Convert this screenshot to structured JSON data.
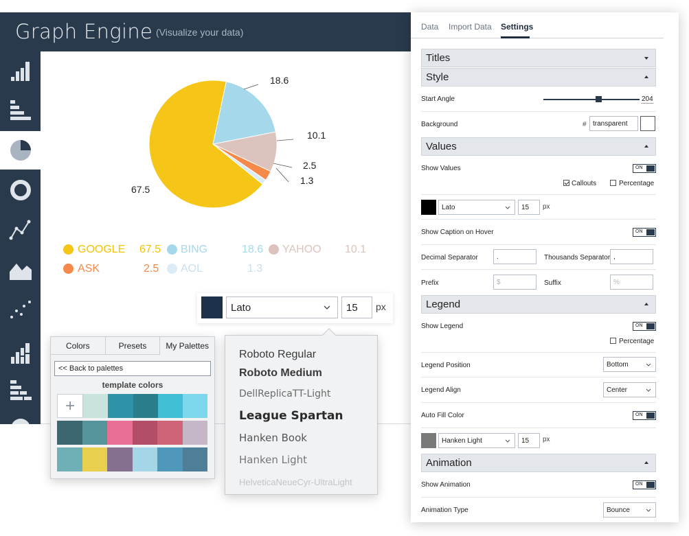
{
  "app": {
    "title": "Graph Engine",
    "subtitle": "(Visualize your data)",
    "sidebar_icons": [
      "bar-chart-icon",
      "horizontal-bar-chart-icon",
      "pie-chart-icon",
      "donut-chart-icon",
      "line-chart-icon",
      "area-chart-icon",
      "scatter-chart-icon",
      "stacked-bar-chart-icon",
      "stacked-horizontal-bar-chart-icon",
      "semi-pie-chart-icon"
    ],
    "active_sidebar": "pie-chart-icon"
  },
  "chart_data": {
    "type": "pie",
    "start_angle": 204,
    "slices": [
      {
        "name": "GOOGLE",
        "value": 67.5,
        "label": "67.5",
        "color": "#f5c518"
      },
      {
        "name": "BING",
        "value": 18.6,
        "label": "18.6",
        "color": "#a4d8ea"
      },
      {
        "name": "YAHOO",
        "value": 10.1,
        "label": "10.1",
        "color": "#dcc3bd"
      },
      {
        "name": "ASK",
        "value": 2.5,
        "label": "2.5",
        "color": "#f4894a"
      },
      {
        "name": "AOL",
        "value": 1.3,
        "label": "1.3",
        "color": "#dcecf6"
      }
    ],
    "legend_placement": "bottom"
  },
  "font_picker": {
    "swatch_color": "#1c3049",
    "font": "Lato",
    "size": "15",
    "unit": "px",
    "options": [
      "Roboto Regular",
      "Roboto Medium",
      "DellReplicaTT-Light",
      "League Spartan",
      "Hanken Book",
      "Hanken Light",
      "HelveticaNeueCyr-UltraLight"
    ]
  },
  "palettes": {
    "tabs": [
      "Colors",
      "Presets",
      "My Palettes"
    ],
    "active_tab": "My Palettes",
    "back_label": "<< Back to palettes",
    "heading": "template colors",
    "add_symbol": "+",
    "rows": [
      [
        "#c9e4dc",
        "#2f93a8",
        "#2a7e8c",
        "#42bed4",
        "#7cd6ec"
      ],
      [
        "#3c6770",
        "#56949c",
        "#e96f97",
        "#b24e68",
        "#cf6377",
        "#c6b7c8"
      ],
      [
        "#6fb0b6",
        "#e8cf4e",
        "#85718f",
        "#a5d6e7",
        "#5098bb",
        "#4f7e98"
      ]
    ]
  },
  "settings": {
    "tabs": [
      "Data",
      "Import Data",
      "Settings"
    ],
    "active_tab": "Settings",
    "titles_header": "Titles",
    "style_header": "Style",
    "start_angle_label": "Start Angle",
    "start_angle_value": "204",
    "start_angle_fraction": 0.57,
    "background_label": "Background",
    "background_hash": "#",
    "background_value": "transparent",
    "values_header": "Values",
    "show_values_label": "Show Values",
    "toggle_on": "ON",
    "callouts_label": "Callouts",
    "percentage_label": "Percentage",
    "values_font": "Lato",
    "values_size": "15",
    "values_font_color": "#000000",
    "px": "px",
    "show_caption_label": "Show Caption on Hover",
    "decimal_label": "Decimal Separator",
    "decimal_value": ".",
    "thousands_label": "Thousands Separator",
    "thousands_value": ",",
    "prefix_label": "Prefix",
    "prefix_placeholder": "$",
    "suffix_label": "Suffix",
    "suffix_placeholder": "%",
    "legend_header": "Legend",
    "show_legend_label": "Show Legend",
    "legend_percentage_label": "Percentage",
    "legend_position_label": "Legend Position",
    "legend_position_value": "Bottom",
    "legend_align_label": "Legend Align",
    "legend_align_value": "Center",
    "auto_fill_label": "Auto Fill Color",
    "legend_font": "Hanken Light",
    "legend_size": "15",
    "legend_font_color": "#7a7a7a",
    "animation_header": "Animation",
    "show_animation_label": "Show Animation",
    "animation_type_label": "Animation Type",
    "animation_type_value": "Bounce"
  }
}
